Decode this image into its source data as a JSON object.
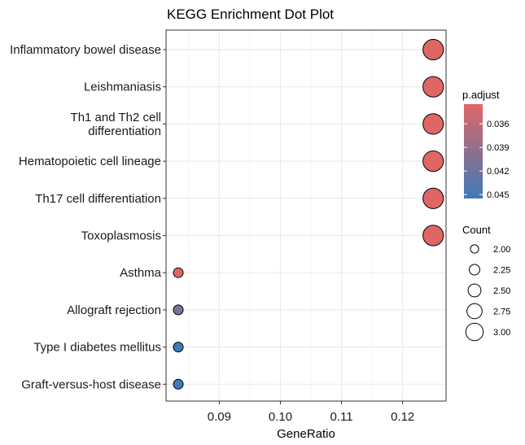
{
  "chart_data": {
    "type": "scatter",
    "title": "KEGG Enrichment Dot Plot",
    "xlabel": "GeneRatio",
    "ylabel": "",
    "xlim": [
      0.0813,
      0.1271
    ],
    "xticks": [
      0.09,
      0.1,
      0.11,
      0.12
    ],
    "xtick_labels": [
      "0.09",
      "0.10",
      "0.11",
      "0.12"
    ],
    "grid": true,
    "legend_position": "right",
    "categories": [
      "Inflammatory bowel disease",
      "Leishmaniasis",
      "Th1 and Th2 cell differentiation",
      "Hematopoietic cell lineage",
      "Th17 cell differentiation",
      "Toxoplasmosis",
      "Asthma",
      "Allograft rejection",
      "Type I diabetes mellitus",
      "Graft-versus-host disease"
    ],
    "category_lines": [
      [
        "Inflammatory bowel disease"
      ],
      [
        "Leishmaniasis"
      ],
      [
        "Th1 and Th2 cell",
        "differentiation"
      ],
      [
        "Hematopoietic cell lineage"
      ],
      [
        "Th17 cell differentiation"
      ],
      [
        "Toxoplasmosis"
      ],
      [
        "Asthma"
      ],
      [
        "Allograft rejection"
      ],
      [
        "Type I diabetes mellitus"
      ],
      [
        "Graft-versus-host disease"
      ]
    ],
    "points": [
      {
        "term": "Inflammatory bowel disease",
        "gene_ratio": 0.125,
        "count": 3,
        "p_adjust": 0.0335
      },
      {
        "term": "Leishmaniasis",
        "gene_ratio": 0.125,
        "count": 3,
        "p_adjust": 0.0335
      },
      {
        "term": "Th1 and Th2 cell differentiation",
        "gene_ratio": 0.125,
        "count": 3,
        "p_adjust": 0.0335
      },
      {
        "term": "Hematopoietic cell lineage",
        "gene_ratio": 0.125,
        "count": 3,
        "p_adjust": 0.0335
      },
      {
        "term": "Th17 cell differentiation",
        "gene_ratio": 0.125,
        "count": 3,
        "p_adjust": 0.0335
      },
      {
        "term": "Toxoplasmosis",
        "gene_ratio": 0.125,
        "count": 3,
        "p_adjust": 0.0335
      },
      {
        "term": "Asthma",
        "gene_ratio": 0.0833,
        "count": 2,
        "p_adjust": 0.0335
      },
      {
        "term": "Allograft rejection",
        "gene_ratio": 0.0833,
        "count": 2,
        "p_adjust": 0.041
      },
      {
        "term": "Type I diabetes mellitus",
        "gene_ratio": 0.0833,
        "count": 2,
        "p_adjust": 0.0455
      },
      {
        "term": "Graft-versus-host disease",
        "gene_ratio": 0.0833,
        "count": 2,
        "p_adjust": 0.0455
      }
    ],
    "color_legend": {
      "title": "p.adjust",
      "range": [
        0.0335,
        0.0455
      ],
      "ticks": [
        0.036,
        0.039,
        0.042,
        0.045
      ],
      "tick_labels": [
        "0.036",
        "0.039",
        "0.042",
        "0.045"
      ],
      "low_color": "#e06666",
      "high_color": "#3d7ab8"
    },
    "size_legend": {
      "title": "Count",
      "values": [
        2.0,
        2.25,
        2.5,
        2.75,
        3.0
      ],
      "labels": [
        "2.00",
        "2.25",
        "2.50",
        "2.75",
        "3.00"
      ]
    }
  }
}
